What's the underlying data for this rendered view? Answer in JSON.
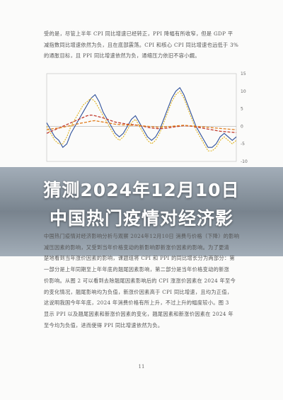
{
  "top_paragraph": [
    "受的是，尽管上半年 CPI 同比增速已经转正，PPI 降幅有所收窄，但是 GDP 平",
    "减指数同比增速依然为负，且在底部震荡。CPI 和核心 CPI 同比增速也远低于 3%",
    "的通胀目标，且 PPI 同比增速依然为负，通缩压力依旧不容小觑。"
  ],
  "chart_data": {
    "type": "line",
    "title": "",
    "right_axis_ticks": [
      "15",
      "10",
      "5",
      "0",
      "-5",
      "-10"
    ],
    "right_ylim": [
      -10,
      15
    ],
    "x": [
      0,
      1,
      2,
      3,
      4,
      5,
      6,
      7,
      8,
      9,
      10,
      11,
      12,
      13,
      14,
      15,
      16,
      17,
      18,
      19,
      20,
      21,
      22,
      23,
      24,
      25,
      26,
      27,
      28,
      29,
      30,
      31,
      32,
      33,
      34,
      35,
      36,
      37,
      38,
      39,
      40,
      41,
      42,
      43,
      44,
      45,
      46,
      47
    ],
    "series": [
      {
        "color": "#2d4f9a",
        "style": "solid",
        "values": [
          1,
          -1,
          -3,
          -4,
          -6,
          -5,
          -2,
          0,
          2,
          4,
          6,
          8,
          9,
          7,
          4,
          2,
          0,
          -2,
          -3,
          -2,
          0,
          2,
          3,
          1,
          -1,
          -3,
          -4,
          -3,
          -1,
          2,
          5,
          8,
          10,
          11,
          9,
          6,
          3,
          0,
          -2,
          -4,
          -6,
          -6,
          -5,
          -3,
          -2,
          -3,
          -4,
          -3
        ]
      },
      {
        "color": "#e0b21a",
        "style": "dashed",
        "values": [
          0,
          -2,
          -4,
          -5,
          -5,
          -3,
          0,
          2,
          4,
          6,
          7,
          8,
          7,
          5,
          3,
          1,
          -1,
          -3,
          -4,
          -3,
          -1,
          1,
          2,
          0,
          -2,
          -4,
          -5,
          -4,
          -2,
          1,
          4,
          7,
          9,
          10,
          8,
          5,
          2,
          -1,
          -3,
          -5,
          -7,
          -7,
          -6,
          -4,
          -3,
          -4,
          -5,
          -4
        ]
      },
      {
        "color": "#c0392b",
        "style": "dashed",
        "values": [
          -2,
          -1.5,
          -1,
          -0.5,
          0,
          0.5,
          1,
          1.5,
          2,
          2.5,
          3,
          3.2,
          3,
          2.7,
          2.4,
          2,
          1.6,
          1.2,
          1,
          0.8,
          0.6,
          0.5,
          0.4,
          0.2,
          0,
          -0.3,
          -0.5,
          -0.6,
          -0.7,
          -0.6,
          -0.5,
          -0.3,
          -0.1,
          0,
          0.2,
          0.1,
          0,
          -0.2,
          -0.4,
          -0.6,
          -0.8,
          -1,
          -1.2,
          -1.4,
          -1.5,
          -1.6,
          -1.7,
          -1.8
        ]
      },
      {
        "color": "#e07b1a",
        "style": "dashed",
        "values": [
          -1,
          -0.8,
          -0.6,
          -0.5,
          -0.3,
          0,
          0.2,
          0.5,
          0.8,
          1,
          1.2,
          1.5,
          1.6,
          1.4,
          1.2,
          1,
          0.8,
          0.6,
          0.5,
          0.4,
          0.4,
          0.3,
          0.3,
          0.2,
          0.1,
          0,
          -0.1,
          -0.2,
          -0.3,
          -0.2,
          -0.1,
          0,
          0.1,
          0.2,
          0.3,
          0.2,
          0.1,
          0,
          -0.1,
          -0.2,
          -0.3,
          -0.4,
          -0.5,
          -0.6,
          -0.7,
          -0.8,
          -0.9,
          -1
        ]
      }
    ]
  },
  "banner": {
    "line1": "猜测2024年12月10日",
    "line2": "中国热门疫情对经济影"
  },
  "bottom_paragraph": [
    "中国热门疫情对经济影响分析与观察 2024年12月10日 消费与价格（下降）的影响",
    "减压因素的影响，又受到当年价格变动的新影响即新涨价因素的影响。为了更清",
    "楚地看到当年涨价因素的影响，课题组将 CPI 和 PPI 的同比增长分为两部分：第",
    "一部分是上年同期至上年年底的翘尾因素影响，第二部分是当年价格变动的新涨",
    "价影响。从图 2 可以看到去除翘尾因素影响后的 CPI 涨涨价因素在 2024 年至今",
    "的变化情况，翘尾影响均为负值，新涨价因素高于 CPI 同比增速，且均为正值，",
    "这说明我国今年年底，2024 年消费价格有所上升，不过上升的幅度较小。图 3",
    "显示 PPI 以及翘尾因素和新涨价因素的变化，翘尾因素和新涨价因素在 2024 年",
    "至今均为负值，进而使得 PPI 同比增速依然为负。"
  ],
  "page_number": "11"
}
